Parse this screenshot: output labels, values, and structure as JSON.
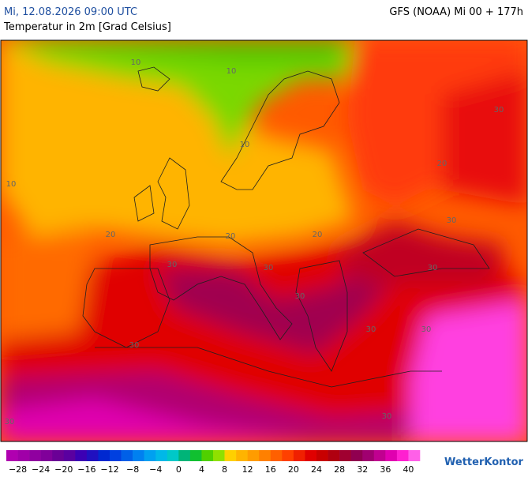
{
  "header": {
    "datetime": "Mi, 12.08.2026 09:00 UTC",
    "model": "GFS (NOAA) Mi 00 + 177h",
    "subtitle": "Temperatur in 2m [Grad Celsius]"
  },
  "map": {
    "contour_labels": [
      "10",
      "10",
      "10",
      "10",
      "20",
      "20",
      "20",
      "20",
      "30",
      "30",
      "30",
      "30",
      "30",
      "30",
      "30",
      "30",
      "30",
      "30",
      "30"
    ]
  },
  "legend": {
    "colors": [
      "#b000b0",
      "#a000a8",
      "#9000a0",
      "#80009a",
      "#6a0096",
      "#5a00a0",
      "#3c00b4",
      "#2010c0",
      "#0028d0",
      "#0040e0",
      "#0060e8",
      "#0080f0",
      "#00a0f0",
      "#00b8e8",
      "#00c8c8",
      "#00b478",
      "#10c030",
      "#50d000",
      "#90e000",
      "#ffd000",
      "#ffb400",
      "#ff9c00",
      "#ff8000",
      "#ff6000",
      "#ff4000",
      "#f02000",
      "#e00000",
      "#c80000",
      "#b00010",
      "#a00030",
      "#900050",
      "#a00070",
      "#c00090",
      "#e000b0",
      "#ff20d0",
      "#ff60e8"
    ],
    "labels": [
      "−28",
      "−24",
      "−20",
      "−16",
      "−12",
      "−8",
      "−4",
      "0",
      "4",
      "8",
      "12",
      "16",
      "20",
      "24",
      "28",
      "32",
      "36",
      "40"
    ]
  },
  "logo": "WetterKontor"
}
